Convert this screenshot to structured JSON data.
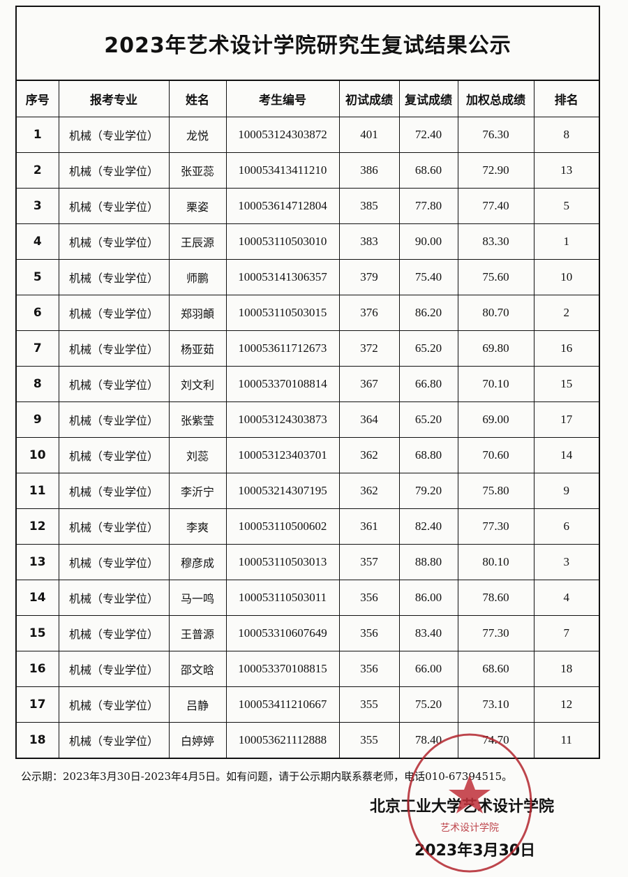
{
  "title": "2023年艺术设计学院研究生复试结果公示",
  "table": {
    "headers": [
      "序号",
      "报考专业",
      "姓名",
      "考生编号",
      "初试成绩",
      "复试成绩",
      "加权总成绩",
      "排名"
    ],
    "rows": [
      [
        "1",
        "机械（专业学位）",
        "龙悦",
        "100053124303872",
        "401",
        "72.40",
        "76.30",
        "8"
      ],
      [
        "2",
        "机械（专业学位）",
        "张亚蕊",
        "100053413411210",
        "386",
        "68.60",
        "72.90",
        "13"
      ],
      [
        "3",
        "机械（专业学位）",
        "栗姿",
        "100053614712804",
        "385",
        "77.80",
        "77.40",
        "5"
      ],
      [
        "4",
        "机械（专业学位）",
        "王辰源",
        "100053110503010",
        "383",
        "90.00",
        "83.30",
        "1"
      ],
      [
        "5",
        "机械（专业学位）",
        "师鹏",
        "100053141306357",
        "379",
        "75.40",
        "75.60",
        "10"
      ],
      [
        "6",
        "机械（专业学位）",
        "郑羽頔",
        "100053110503015",
        "376",
        "86.20",
        "80.70",
        "2"
      ],
      [
        "7",
        "机械（专业学位）",
        "杨亚茹",
        "100053611712673",
        "372",
        "65.20",
        "69.80",
        "16"
      ],
      [
        "8",
        "机械（专业学位）",
        "刘文利",
        "100053370108814",
        "367",
        "66.80",
        "70.10",
        "15"
      ],
      [
        "9",
        "机械（专业学位）",
        "张紫莹",
        "100053124303873",
        "364",
        "65.20",
        "69.00",
        "17"
      ],
      [
        "10",
        "机械（专业学位）",
        "刘蕊",
        "100053123403701",
        "362",
        "68.80",
        "70.60",
        "14"
      ],
      [
        "11",
        "机械（专业学位）",
        "李沂宁",
        "100053214307195",
        "362",
        "79.20",
        "75.80",
        "9"
      ],
      [
        "12",
        "机械（专业学位）",
        "李爽",
        "100053110500602",
        "361",
        "82.40",
        "77.30",
        "6"
      ],
      [
        "13",
        "机械（专业学位）",
        "穆彦成",
        "100053110503013",
        "357",
        "88.80",
        "80.10",
        "3"
      ],
      [
        "14",
        "机械（专业学位）",
        "马一鸣",
        "100053110503011",
        "356",
        "86.00",
        "78.60",
        "4"
      ],
      [
        "15",
        "机械（专业学位）",
        "王普源",
        "100053310607649",
        "356",
        "83.40",
        "77.30",
        "7"
      ],
      [
        "16",
        "机械（专业学位）",
        "邵文晗",
        "100053370108815",
        "356",
        "66.00",
        "68.60",
        "18"
      ],
      [
        "17",
        "机械（专业学位）",
        "吕静",
        "100053411210667",
        "355",
        "75.20",
        "73.10",
        "12"
      ],
      [
        "18",
        "机械（专业学位）",
        "白婷婷",
        "100053621112888",
        "355",
        "78.40",
        "74.70",
        "11"
      ]
    ]
  },
  "footer": {
    "note": "公示期：2023年3月30日-2023年4月5日。如有问题，请于公示期内联系蔡老师，电话010-67394515。",
    "signature": "北京工业大学艺术设计学院",
    "date": "2023年3月30日"
  },
  "stamp": {
    "text": "艺术设计学院",
    "color": "#b3262e"
  }
}
